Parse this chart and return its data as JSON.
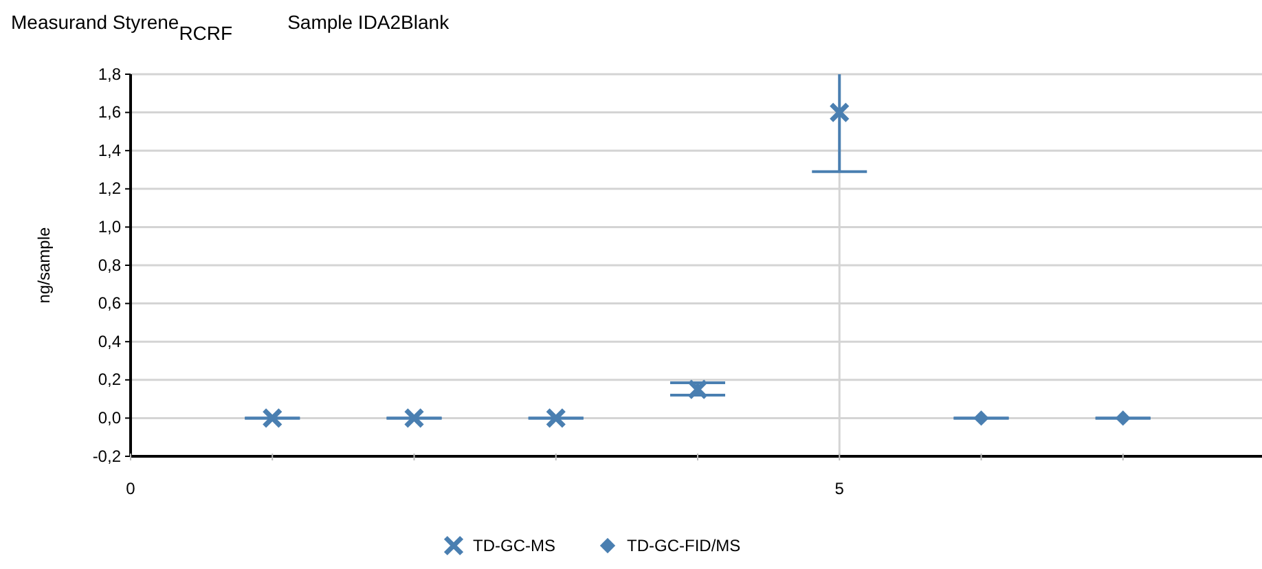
{
  "chart_data": {
    "type": "scatter",
    "title": "Measurand  Styrene$_{RCRF}$",
    "subtitle": "Sample  IDA2Blank",
    "ylabel": "ng/sample",
    "xlim": [
      0,
      8
    ],
    "xticks": [
      0,
      {
        "value": 1,
        "label": null
      },
      {
        "value": 2,
        "label": null
      },
      {
        "value": 3,
        "label": null
      },
      {
        "value": 4,
        "label": null
      },
      5,
      {
        "value": 6,
        "label": null
      },
      {
        "value": 7,
        "label": null
      }
    ],
    "ylim": [
      -0.2,
      1.8
    ],
    "yticks": [
      {
        "value": -0.2,
        "label": "-0,2"
      },
      {
        "value": 0,
        "label": "0,0"
      },
      {
        "value": 0.2,
        "label": "0,2"
      },
      {
        "value": 0.4,
        "label": "0,4"
      },
      {
        "value": 0.6,
        "label": "0,6"
      },
      {
        "value": 0.8,
        "label": "0,8"
      },
      {
        "value": 1.0,
        "label": "1,0"
      },
      {
        "value": 1.2,
        "label": "1,2"
      },
      {
        "value": 1.4,
        "label": "1,4"
      },
      {
        "value": 1.6,
        "label": "1,6"
      },
      {
        "value": 1.8,
        "label": "1,8"
      }
    ],
    "grid": true,
    "legend": "bottom",
    "series": [
      {
        "name": "TD-GC-MS",
        "color": "#4a7fb1",
        "marker": "cross",
        "x": [
          1,
          2,
          3,
          4,
          5
        ],
        "values": [
          0,
          0,
          0,
          0.15,
          1.6
        ],
        "errors": [
          0,
          0,
          0,
          [
            0.12,
            0.185
          ],
          [
            1.29,
            1.8
          ]
        ]
      },
      {
        "name": "TD-GC-FID/MS",
        "color": "#4a7fb1",
        "marker": "diamond",
        "x": [
          6,
          7
        ],
        "values": [
          0,
          0
        ],
        "errors": [
          0,
          0
        ]
      }
    ]
  }
}
